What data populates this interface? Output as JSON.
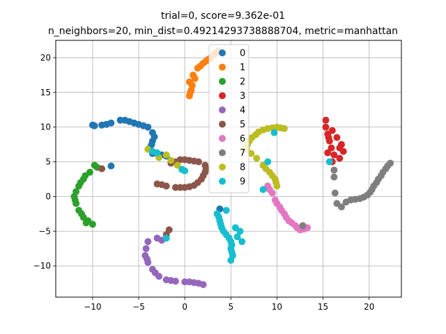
{
  "chart_data": {
    "type": "scatter",
    "title_line1": "trial=0, score=9.362e-01",
    "title_line2": "n_neighbors=20, min_dist=0.49214293738888704, metric=manhattan",
    "xlim": [
      -14,
      23.5
    ],
    "ylim": [
      -14.5,
      22.5
    ],
    "xticks": [
      -10,
      -5,
      0,
      5,
      10,
      15,
      20
    ],
    "yticks": [
      -10,
      -5,
      0,
      5,
      10,
      15,
      20
    ],
    "grid": true,
    "legend_position": "top-center",
    "series": [
      {
        "name": "0",
        "color": "#1f77b4",
        "points": [
          [
            -10,
            10.3
          ],
          [
            -9,
            10.3
          ],
          [
            -8,
            10.6
          ],
          [
            -7,
            11
          ],
          [
            -6,
            10.8
          ],
          [
            -5,
            10.4
          ],
          [
            -4,
            10
          ],
          [
            -3.5,
            9.2
          ],
          [
            -3.5,
            8
          ],
          [
            -3.8,
            7
          ],
          [
            -3.5,
            6.2
          ],
          [
            -2.5,
            6
          ],
          [
            -2,
            5.8
          ],
          [
            -9.8,
            10.2
          ],
          [
            -8.5,
            10.4
          ],
          [
            -6.5,
            11
          ],
          [
            -5.5,
            10.6
          ],
          [
            -4.5,
            10.2
          ],
          [
            -3.3,
            8.6
          ],
          [
            -3.6,
            7.5
          ],
          [
            -3,
            6.2
          ],
          [
            -8,
            4.4
          ],
          [
            3.8,
            -1.8
          ]
        ]
      },
      {
        "name": "1",
        "color": "#ff7f0e",
        "points": [
          [
            0.5,
            14.5
          ],
          [
            0.7,
            15.3
          ],
          [
            0.5,
            16.5
          ],
          [
            0.9,
            17.5
          ],
          [
            1.4,
            18.5
          ],
          [
            2,
            19.2
          ],
          [
            2.6,
            19.8
          ],
          [
            3.2,
            20.5
          ],
          [
            3.7,
            21
          ],
          [
            0.8,
            16
          ],
          [
            1.1,
            17
          ],
          [
            1.7,
            18.8
          ],
          [
            2.3,
            19.5
          ],
          [
            2.9,
            20.1
          ],
          [
            3.5,
            20.8
          ],
          [
            0.6,
            15
          ]
        ]
      },
      {
        "name": "2",
        "color": "#2ca02c",
        "points": [
          [
            -9.5,
            4.2
          ],
          [
            -10.3,
            3.5
          ],
          [
            -11,
            2.5
          ],
          [
            -11.5,
            1.5
          ],
          [
            -12,
            0
          ],
          [
            -11.8,
            -1
          ],
          [
            -11.5,
            -2
          ],
          [
            -11,
            -3
          ],
          [
            -10.5,
            -3.5
          ],
          [
            -10,
            -4
          ],
          [
            -9.8,
            4.5
          ],
          [
            -10.8,
            3
          ],
          [
            -11.3,
            2
          ],
          [
            -11.8,
            0.7
          ],
          [
            -11.9,
            -0.5
          ],
          [
            -11.2,
            -2.5
          ],
          [
            -10.7,
            -3.8
          ]
        ]
      },
      {
        "name": "3",
        "color": "#d62728",
        "points": [
          [
            15.3,
            11
          ],
          [
            15.3,
            10
          ],
          [
            15.5,
            9
          ],
          [
            15.7,
            8
          ],
          [
            15.9,
            7
          ],
          [
            16.2,
            6
          ],
          [
            16.8,
            5.5
          ],
          [
            17.2,
            6.5
          ],
          [
            17,
            7.5
          ],
          [
            16.5,
            8.5
          ],
          [
            16,
            9.5
          ],
          [
            15.5,
            6.3
          ],
          [
            16.8,
            7
          ],
          [
            15.6,
            8.5
          ],
          [
            16,
            5
          ]
        ]
      },
      {
        "name": "4",
        "color": "#9467bd",
        "points": [
          [
            -4,
            -6.5
          ],
          [
            -4.2,
            -7.5
          ],
          [
            -4.3,
            -8.5
          ],
          [
            -4,
            -9.5
          ],
          [
            -3.5,
            -10.5
          ],
          [
            -2.8,
            -11.5
          ],
          [
            -2,
            -12
          ],
          [
            -1,
            -12.2
          ],
          [
            0,
            -12.3
          ],
          [
            1,
            -12.4
          ],
          [
            2,
            -12.7
          ],
          [
            -2.5,
            -6.3
          ],
          [
            -3,
            -6
          ],
          [
            -4.1,
            -9
          ],
          [
            -3.2,
            -11
          ],
          [
            -1.5,
            -12.1
          ],
          [
            0.5,
            -12.3
          ],
          [
            1.5,
            -12.5
          ]
        ]
      },
      {
        "name": "5",
        "color": "#8c564b",
        "points": [
          [
            -3,
            1.8
          ],
          [
            -2,
            1.5
          ],
          [
            -1,
            1.3
          ],
          [
            0,
            1.3
          ],
          [
            1,
            1.6
          ],
          [
            1.8,
            2.5
          ],
          [
            2.2,
            3.5
          ],
          [
            2.2,
            4.5
          ],
          [
            1.5,
            5
          ],
          [
            0.5,
            5.2
          ],
          [
            -0.5,
            5.3
          ],
          [
            -1.5,
            4.8
          ],
          [
            -9,
            4
          ],
          [
            -1.7,
            -4.8
          ],
          [
            -2,
            -5.5
          ],
          [
            -2.5,
            1.7
          ],
          [
            -0.5,
            1.3
          ],
          [
            0.5,
            1.4
          ],
          [
            1.4,
            2
          ],
          [
            2,
            3
          ],
          [
            2.3,
            4
          ],
          [
            1,
            5.1
          ],
          [
            0,
            5.3
          ],
          [
            -1,
            5
          ]
        ]
      },
      {
        "name": "6",
        "color": "#e377c2",
        "points": [
          [
            9,
            1.5
          ],
          [
            9.5,
            0.5
          ],
          [
            9.8,
            -0.5
          ],
          [
            10.3,
            -1.5
          ],
          [
            10.8,
            -2.5
          ],
          [
            11.3,
            -3.5
          ],
          [
            12,
            -4.2
          ],
          [
            12.5,
            -4.8
          ],
          [
            13.3,
            -4.5
          ],
          [
            9.2,
            1
          ],
          [
            10,
            -1
          ],
          [
            10.5,
            -2
          ],
          [
            11,
            -3
          ],
          [
            11.6,
            -3.8
          ],
          [
            12.2,
            -4.5
          ],
          [
            12.9,
            -4.7
          ]
        ]
      },
      {
        "name": "7",
        "color": "#7f7f7f",
        "points": [
          [
            16.5,
            -1
          ],
          [
            17,
            -1.5
          ],
          [
            18,
            -0.5
          ],
          [
            19,
            -0.3
          ],
          [
            19.8,
            0.2
          ],
          [
            20.3,
            1
          ],
          [
            20.8,
            2
          ],
          [
            21.3,
            3
          ],
          [
            21.8,
            4
          ],
          [
            22.3,
            4.8
          ],
          [
            16.3,
            0.5
          ],
          [
            16.2,
            2.8
          ],
          [
            16.2,
            3.8
          ],
          [
            12.8,
            -4.2
          ],
          [
            17.5,
            -0.8
          ],
          [
            18.5,
            -0.4
          ],
          [
            19.4,
            -0.1
          ],
          [
            20.1,
            0.6
          ],
          [
            20.5,
            1.5
          ],
          [
            21,
            2.5
          ],
          [
            21.5,
            3.5
          ],
          [
            22,
            4.4
          ]
        ]
      },
      {
        "name": "8",
        "color": "#bcbd22",
        "points": [
          [
            9,
            9.8
          ],
          [
            10,
            10
          ],
          [
            10.8,
            9.8
          ],
          [
            8,
            9.3
          ],
          [
            7.3,
            8.5
          ],
          [
            6.8,
            7.5
          ],
          [
            6.5,
            7
          ],
          [
            7.2,
            6.2
          ],
          [
            8.5,
            4.5
          ],
          [
            9.2,
            3.5
          ],
          [
            9.8,
            2.5
          ],
          [
            10,
            1.5
          ],
          [
            -2,
            6
          ],
          [
            -4,
            6.8
          ],
          [
            -2.8,
            5.6
          ],
          [
            -1.5,
            5.2
          ],
          [
            -0.8,
            4.5
          ],
          [
            8.5,
            9.6
          ],
          [
            9.5,
            9.9
          ],
          [
            10.4,
            9.9
          ],
          [
            7.7,
            8.9
          ],
          [
            7,
            8
          ],
          [
            6.7,
            6.8
          ],
          [
            7.8,
            5.5
          ],
          [
            8.8,
            4
          ],
          [
            9.5,
            3
          ],
          [
            9.9,
            2
          ]
        ]
      },
      {
        "name": "9",
        "color": "#17becf",
        "points": [
          [
            3.5,
            -2.5
          ],
          [
            3.8,
            -3.5
          ],
          [
            4,
            -4.5
          ],
          [
            4.5,
            -5.5
          ],
          [
            5,
            -6.5
          ],
          [
            5,
            -7.5
          ],
          [
            5.2,
            -8.5
          ],
          [
            5,
            -9.2
          ],
          [
            6,
            -5
          ],
          [
            6.2,
            -6.5
          ],
          [
            4.5,
            -2
          ],
          [
            0,
            3.7
          ],
          [
            -3.5,
            6.5
          ],
          [
            -2,
            -6
          ],
          [
            8.5,
            1
          ],
          [
            9,
            5
          ],
          [
            9.7,
            9.2
          ],
          [
            15.7,
            5
          ],
          [
            3.7,
            -3
          ],
          [
            3.9,
            -4
          ],
          [
            4.2,
            -5
          ],
          [
            4.8,
            -6
          ],
          [
            5.1,
            -7
          ],
          [
            5.1,
            -8
          ],
          [
            5.7,
            -5.8
          ],
          [
            5.5,
            -4.5
          ],
          [
            -0.3,
            3.9
          ],
          [
            -3,
            6.3
          ]
        ]
      }
    ]
  }
}
